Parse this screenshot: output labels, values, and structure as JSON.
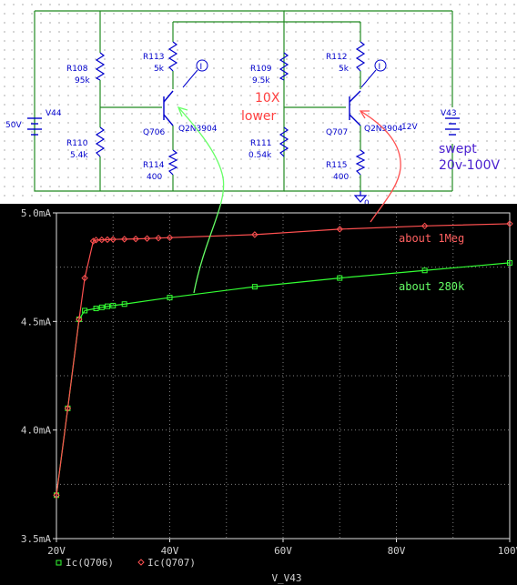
{
  "schematic": {
    "sources": {
      "v44_name": "V44",
      "v44_value": "50V",
      "v43_name": "V43",
      "v43_value": "12V"
    },
    "resistors": [
      {
        "name": "R108",
        "value": "95k"
      },
      {
        "name": "R110",
        "value": "5.4k"
      },
      {
        "name": "R113",
        "value": "5k"
      },
      {
        "name": "R114",
        "value": "400"
      },
      {
        "name": "R109",
        "value": "9.5k"
      },
      {
        "name": "R111",
        "value": "0.54k"
      },
      {
        "name": "R112",
        "value": "5k"
      },
      {
        "name": "R115",
        "value": "400"
      }
    ],
    "transistors": [
      {
        "name": "Q706",
        "model": "Q2N3904"
      },
      {
        "name": "Q707",
        "model": "Q2N3904"
      }
    ],
    "probe_label": "I",
    "ground_label": "0",
    "notes": {
      "tenx_line1": "10X",
      "tenx_line2": "lower",
      "swept_line1": "swept",
      "swept_line2": "20v-100V"
    },
    "colors": {
      "note_red": "#ff4040",
      "note_purple": "#4a1fd0",
      "wire": "#228b22",
      "part": "#0000cc"
    }
  },
  "annotations": {
    "red_label": "about 1Meg",
    "green_label": "about 280k",
    "red_color": "#ff6060",
    "green_color": "#66ff66"
  },
  "chart_data": {
    "type": "line",
    "xlabel": "V_V43",
    "ylabel": "",
    "xlim": [
      20,
      100
    ],
    "ylim": [
      3.5,
      5.0
    ],
    "x_ticks": [
      "20V",
      "40V",
      "60V",
      "80V",
      "100V"
    ],
    "y_ticks": [
      "3.5mA",
      "4.0mA",
      "4.5mA",
      "5.0mA"
    ],
    "grid": true,
    "legend_placement": "bottom-left",
    "series": [
      {
        "name": "Ic(Q706)",
        "color": "#33ff33",
        "marker": "square",
        "x": [
          20,
          22,
          24,
          25,
          27,
          28,
          29,
          30,
          32,
          40,
          55,
          70,
          85,
          100
        ],
        "y": [
          3.7,
          4.1,
          4.51,
          4.55,
          4.56,
          4.565,
          4.57,
          4.573,
          4.58,
          4.61,
          4.66,
          4.7,
          4.735,
          4.77
        ]
      },
      {
        "name": "Ic(Q707)",
        "color": "#ff5050",
        "marker": "diamond",
        "x": [
          20,
          22,
          24,
          25,
          26.5,
          27,
          28,
          29,
          30,
          32,
          34,
          36,
          38,
          40,
          55,
          70,
          85,
          100
        ],
        "y": [
          3.7,
          4.1,
          4.51,
          4.7,
          4.87,
          4.875,
          4.876,
          4.877,
          4.878,
          4.879,
          4.88,
          4.882,
          4.884,
          4.886,
          4.9,
          4.925,
          4.94,
          4.95
        ]
      }
    ]
  }
}
